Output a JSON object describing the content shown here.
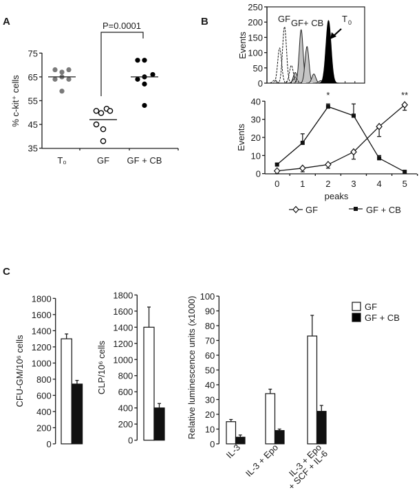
{
  "chart_data": [
    {
      "panel": "A",
      "type": "scatter",
      "ylabel": "% c-kit⁺ cells",
      "ylim": [
        35,
        75
      ],
      "yticks": [
        "35",
        "45",
        "55",
        "65",
        "75"
      ],
      "categories": [
        "T₀",
        "GF",
        "GF + CB"
      ],
      "series": [
        {
          "name": "T₀",
          "values": [
            68,
            67,
            68,
            64,
            65,
            64,
            59
          ],
          "mean": 65,
          "marker": "filled-grey",
          "color": "#7a7a7a"
        },
        {
          "name": "GF",
          "values": [
            50.7,
            49.8,
            51.6,
            50.7,
            45,
            43,
            38
          ],
          "mean": 47,
          "marker": "open",
          "color": "#000000"
        },
        {
          "name": "GF + CB",
          "values": [
            72,
            72,
            66,
            64,
            65,
            62,
            53
          ],
          "mean": 65,
          "marker": "filled-black",
          "color": "#000000"
        }
      ],
      "annotation": {
        "text": "P=0.0001",
        "between": [
          "GF",
          "GF + CB"
        ]
      }
    },
    {
      "panel": "B",
      "type": "area",
      "subtype": "histogram",
      "ylabel": "Events",
      "ylim": [
        0,
        250
      ],
      "yticks": [
        "0",
        "50",
        "100",
        "150",
        "200",
        "250"
      ],
      "xlim": [
        0,
        100
      ],
      "series": [
        {
          "name": "GF+ CB",
          "style": "grey-filled",
          "color": "#c4c4c4",
          "peaks": [
            [
              29,
              35
            ],
            [
              35,
              175
            ],
            [
              41,
              120
            ],
            [
              48,
              30
            ],
            [
              55,
              8
            ]
          ]
        },
        {
          "name": "GF",
          "style": "dashed-outline",
          "color": "#ffffff",
          "peaks": [
            [
              8,
              10
            ],
            [
              13,
              115
            ],
            [
              18,
              185
            ],
            [
              25,
              58
            ],
            [
              29,
              20
            ]
          ]
        },
        {
          "name": "T0",
          "style": "black-filled",
          "color": "#000000",
          "peaks": [
            [
              63,
              205
            ]
          ]
        }
      ],
      "annotations": {
        "gf": "GF",
        "gfcb": "GF+ CB",
        "t0": "T",
        "t0_sub": "0"
      }
    },
    {
      "panel": "B2",
      "type": "line",
      "ylabel": "Events",
      "xlabel": "peaks",
      "ylim": [
        0,
        40
      ],
      "yticks": [
        "0",
        "10",
        "20",
        "30",
        "40"
      ],
      "x": [
        0,
        1,
        2,
        3,
        4,
        5
      ],
      "xticks": [
        "0",
        "1",
        "2",
        "3",
        "4",
        "5"
      ],
      "series": [
        {
          "name": "GF",
          "marker": "open-diamond",
          "values": [
            1.5,
            3,
            5,
            12,
            26,
            38
          ],
          "errors": [
            1.5,
            2,
            2,
            4,
            5.5,
            3
          ],
          "error_dir": "down"
        },
        {
          "name": "GF + CB",
          "marker": "filled-square",
          "values": [
            5,
            17,
            37,
            32,
            8.5,
            1
          ],
          "errors": [
            0.5,
            5,
            1.5,
            6.5,
            1.5,
            0
          ],
          "error_dir": "up"
        }
      ],
      "significance": [
        {
          "x": 2,
          "text": "*"
        },
        {
          "x": 5,
          "text": "**"
        }
      ],
      "legend_position": "bottom"
    },
    {
      "panel": "C",
      "type": "bar",
      "ylabel": "CFU-GM/10⁶ cells",
      "ylim": [
        0,
        1800
      ],
      "yticks": [
        "0",
        "200",
        "400",
        "600",
        "800",
        "1000",
        "1200",
        "1400",
        "1600",
        "1800"
      ],
      "categories": [
        ""
      ],
      "series": [
        {
          "name": "GF",
          "values": [
            1300
          ],
          "errors": [
            60
          ]
        },
        {
          "name": "GF + CB",
          "values": [
            740
          ],
          "errors": [
            45
          ]
        }
      ]
    },
    {
      "panel": "C2",
      "type": "bar",
      "ylabel": "CLP/10⁶ cells",
      "ylim": [
        0,
        1800
      ],
      "yticks": [
        "0",
        "200",
        "400",
        "600",
        "800",
        "1000",
        "1200",
        "1400",
        "1600",
        "1800"
      ],
      "categories": [
        ""
      ],
      "series": [
        {
          "name": "GF",
          "values": [
            1400
          ],
          "errors": [
            250
          ]
        },
        {
          "name": "GF + CB",
          "values": [
            400
          ],
          "errors": [
            55
          ]
        }
      ]
    },
    {
      "panel": "C3",
      "type": "bar",
      "ylabel": "Relative luminescence units  (x1000)",
      "ylim": [
        0,
        100
      ],
      "yticks": [
        "0",
        "10",
        "20",
        "30",
        "40",
        "50",
        "60",
        "70",
        "80",
        "90",
        "100"
      ],
      "categories": [
        [
          "IL-3"
        ],
        [
          "IL-3 + Epo"
        ],
        [
          "IL-3 + Epo",
          "+ SCF + IL-6"
        ]
      ],
      "series": [
        {
          "name": "GF",
          "values": [
            15,
            34,
            73
          ],
          "errors": [
            1.5,
            3,
            14
          ]
        },
        {
          "name": "GF + CB",
          "values": [
            4.5,
            9,
            22
          ],
          "errors": [
            1.5,
            1,
            4
          ]
        }
      ],
      "legend": [
        {
          "label": "GF",
          "color": "#ffffff"
        },
        {
          "label": "GF + CB",
          "color": "#000000"
        }
      ],
      "legend_position": "top-right"
    }
  ],
  "panel_labels": [
    "A",
    "B",
    "C"
  ]
}
